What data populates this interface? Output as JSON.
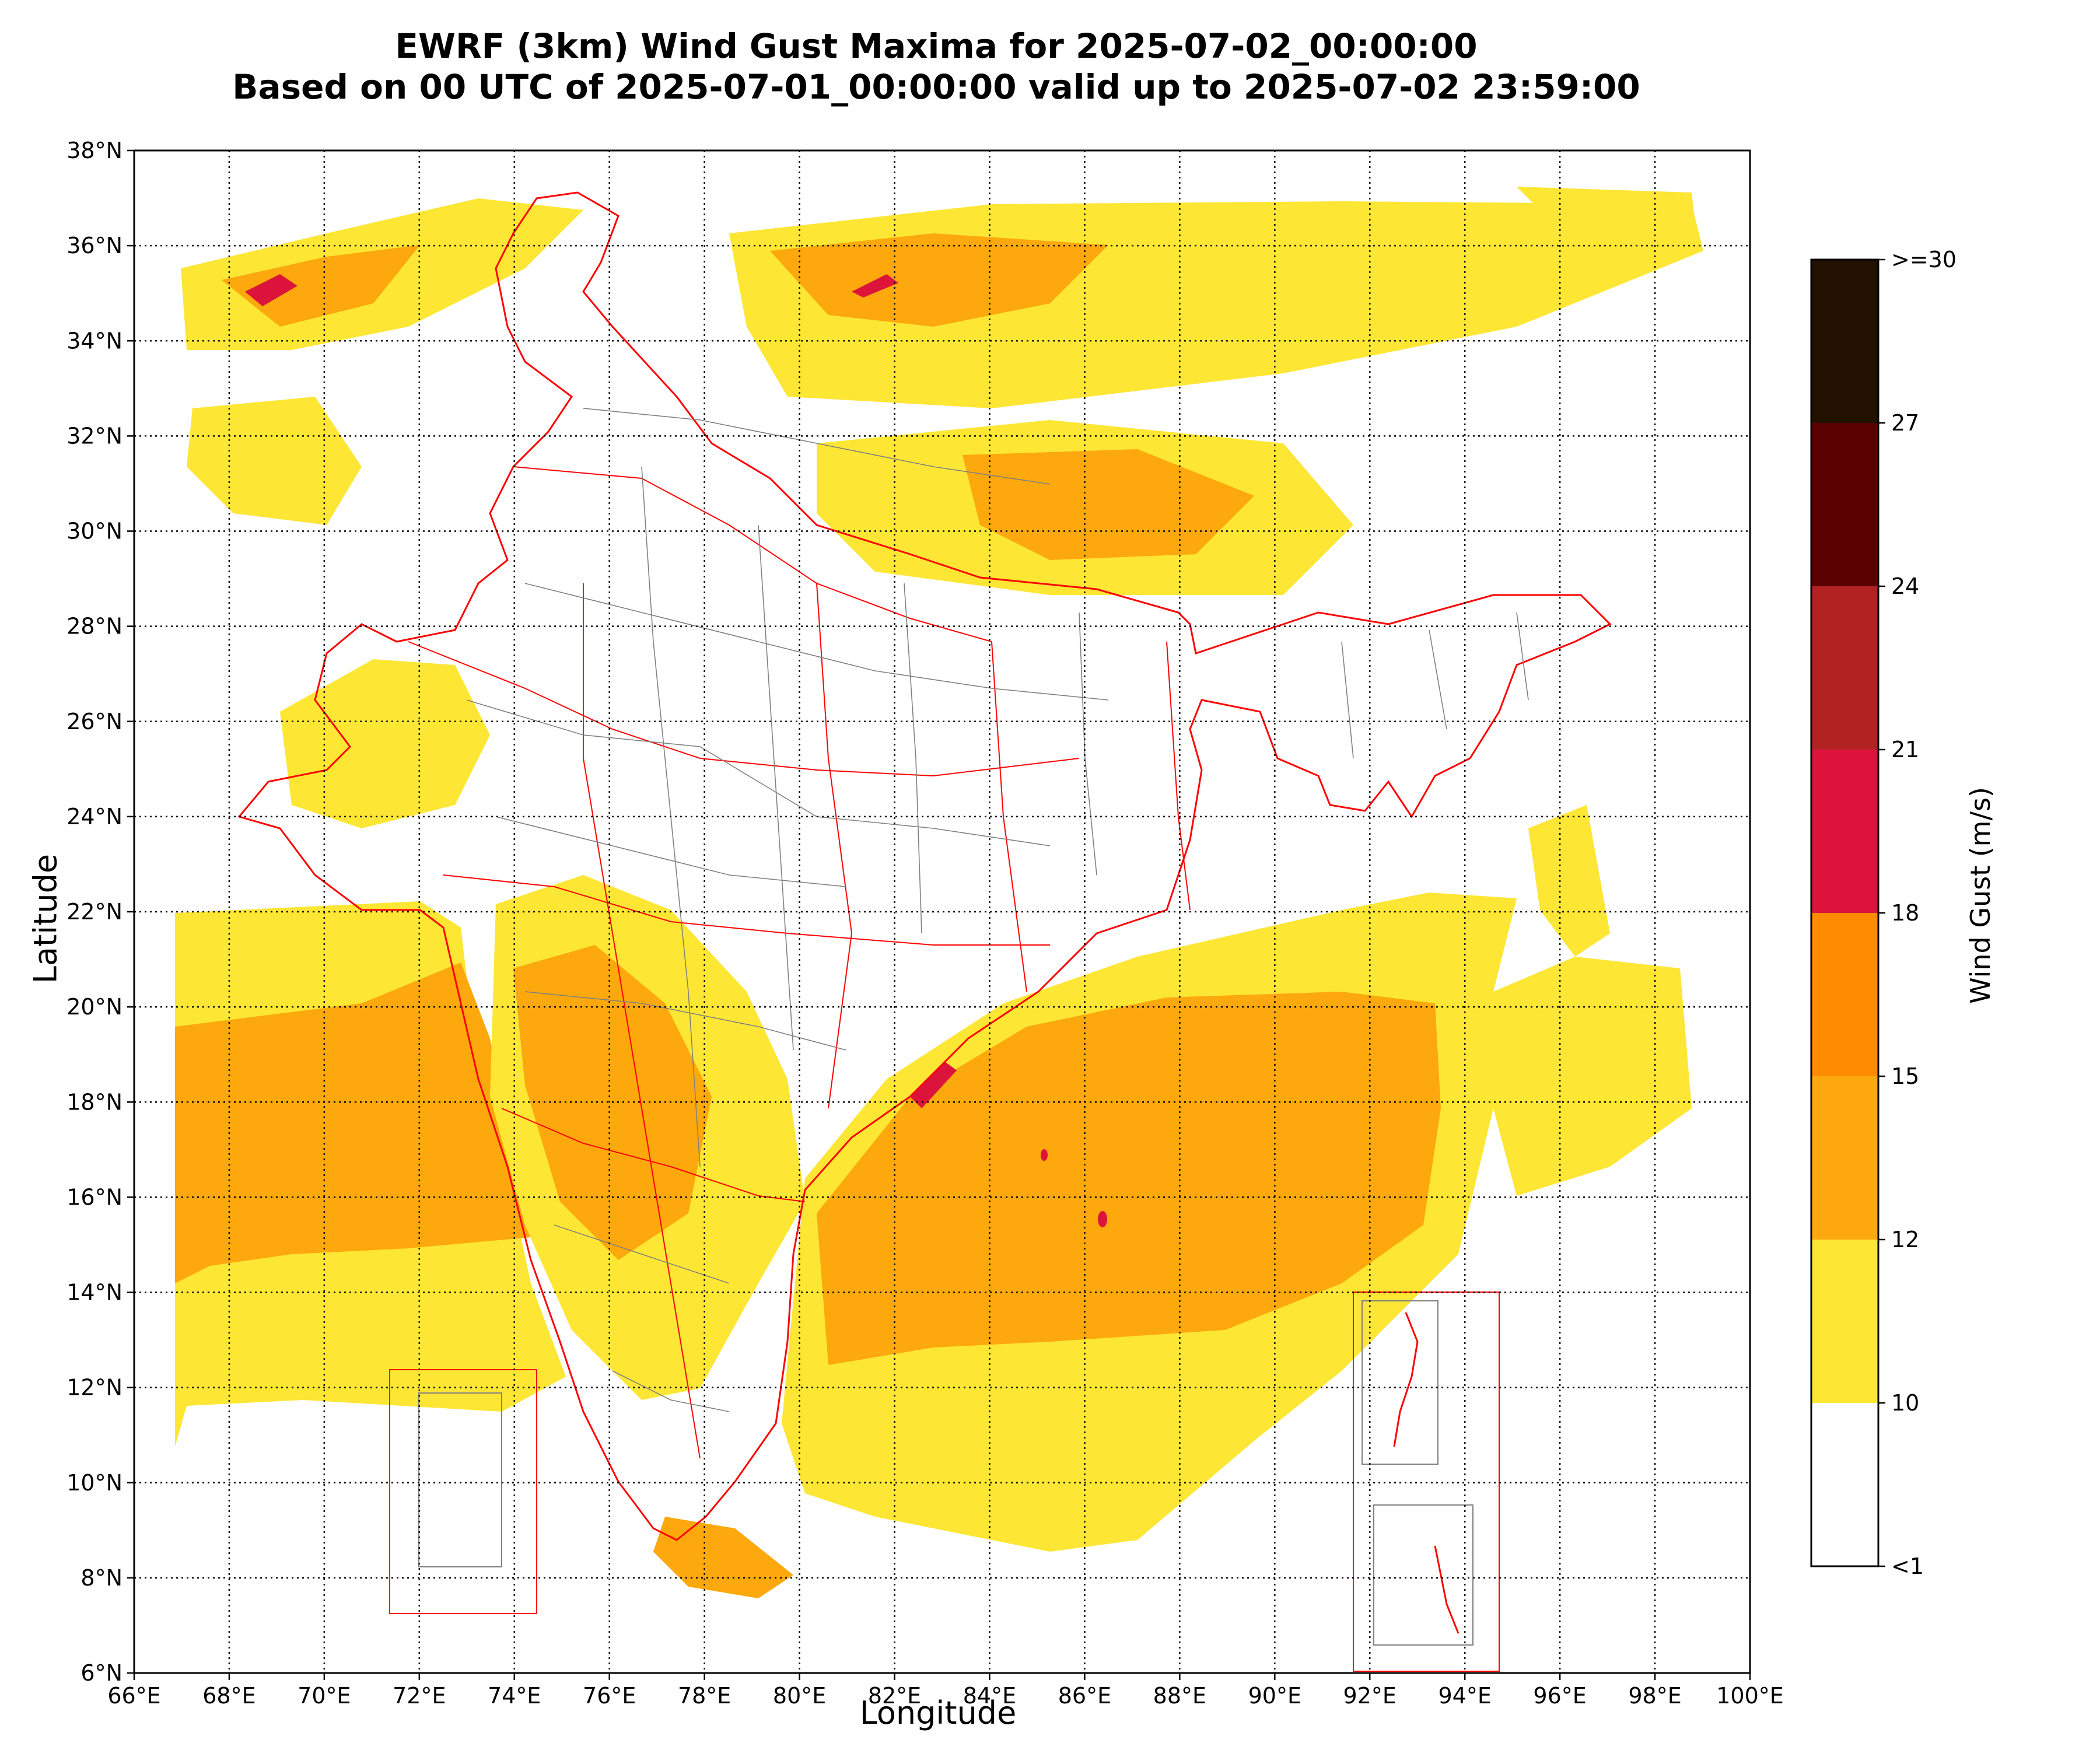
{
  "title": {
    "line1": "EWRF (3km) Wind Gust Maxima for 2025-07-02_00:00:00",
    "line2": "Based on 00 UTC of 2025-07-01_00:00:00 valid up to 2025-07-02 23:59:00"
  },
  "axes": {
    "xlabel": "Longitude",
    "ylabel": "Latitude",
    "lon_range": [
      66,
      100
    ],
    "lat_range": [
      6,
      38
    ],
    "lon_ticks": [
      "66°E",
      "68°E",
      "70°E",
      "72°E",
      "74°E",
      "76°E",
      "78°E",
      "80°E",
      "82°E",
      "84°E",
      "86°E",
      "88°E",
      "90°E",
      "92°E",
      "94°E",
      "96°E",
      "98°E",
      "100°E"
    ],
    "lat_ticks": [
      "6°N",
      "8°N",
      "10°N",
      "12°N",
      "14°N",
      "16°N",
      "18°N",
      "20°N",
      "22°N",
      "24°N",
      "26°N",
      "28°N",
      "30°N",
      "32°N",
      "34°N",
      "36°N",
      "38°N"
    ],
    "grid": "dotted"
  },
  "colorbar": {
    "label": "Wind Gust (m/s)",
    "tick_labels": [
      "<1",
      "10",
      "12",
      "15",
      "18",
      "21",
      "24",
      "27",
      ">=30"
    ],
    "bins": [
      {
        "from": "<1",
        "to": "10",
        "color": "#ffffff"
      },
      {
        "from": "10",
        "to": "12",
        "color": "#fde634"
      },
      {
        "from": "12",
        "to": "15",
        "color": "#fda80c"
      },
      {
        "from": "15",
        "to": "18",
        "color": "#ff8c00"
      },
      {
        "from": "18",
        "to": "21",
        "color": "#dc143c"
      },
      {
        "from": "21",
        "to": "24",
        "color": "#b22222"
      },
      {
        "from": "24",
        "to": "27",
        "color": "#5a0000"
      },
      {
        "from": "27",
        "to": ">=30",
        "color": "#221000"
      }
    ]
  },
  "map": {
    "border_color": "#ff0000",
    "district_color": "#808080",
    "coast_color": "#000000"
  }
}
